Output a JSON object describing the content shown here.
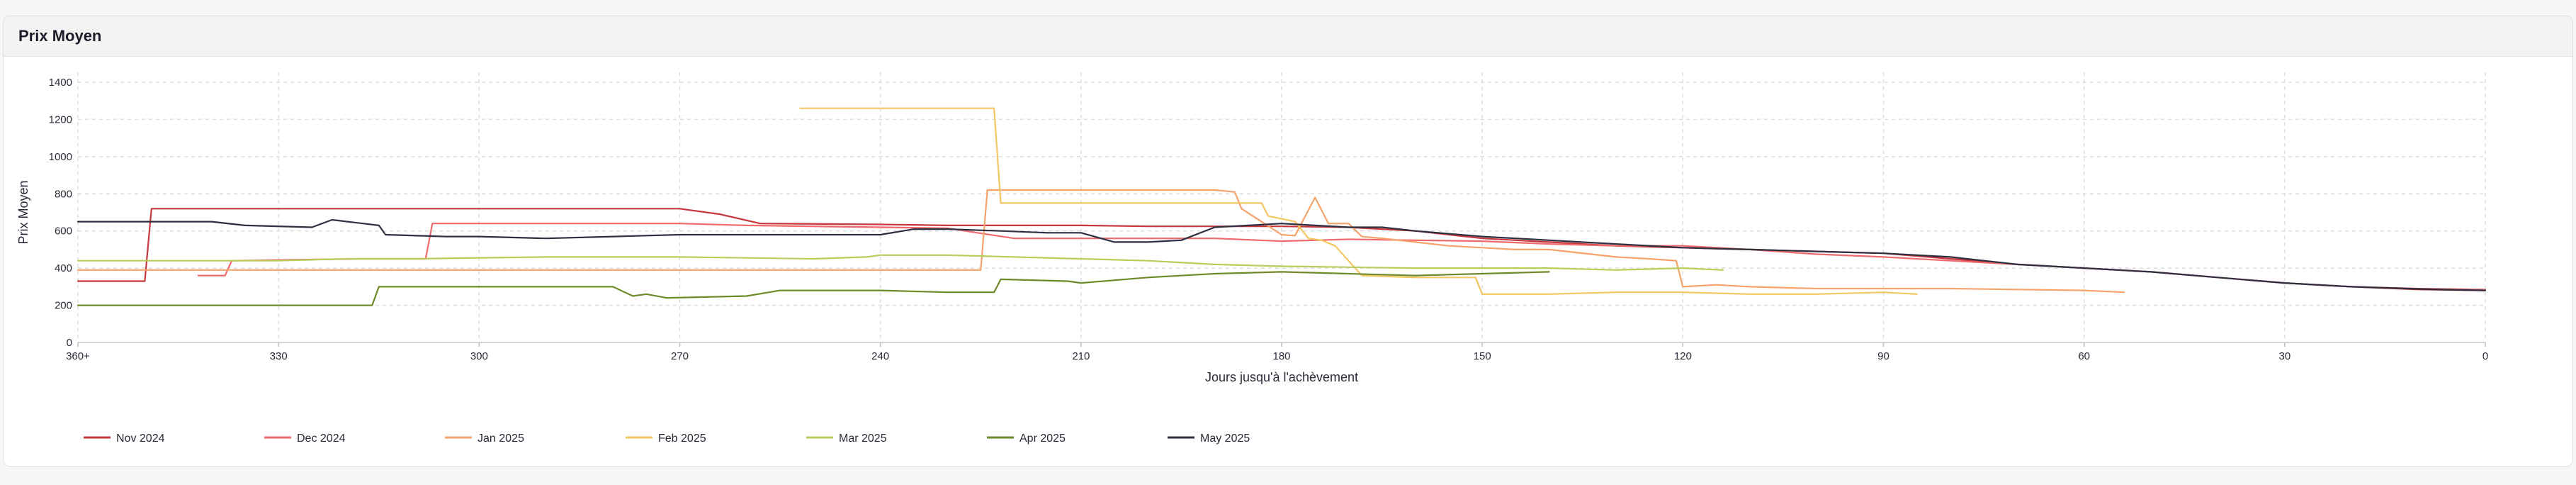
{
  "card": {
    "title": "Prix Moyen"
  },
  "chart_data": {
    "type": "line",
    "xlabel": "Jours jusqu'à l'achèvement",
    "ylabel": "Prix Moyen",
    "xlim": [
      360,
      0
    ],
    "ylim": [
      0,
      1400
    ],
    "x_ticks": [
      {
        "value": 360,
        "label": "360+"
      },
      {
        "value": 330,
        "label": "330"
      },
      {
        "value": 300,
        "label": "300"
      },
      {
        "value": 270,
        "label": "270"
      },
      {
        "value": 240,
        "label": "240"
      },
      {
        "value": 210,
        "label": "210"
      },
      {
        "value": 180,
        "label": "180"
      },
      {
        "value": 150,
        "label": "150"
      },
      {
        "value": 120,
        "label": "120"
      },
      {
        "value": 90,
        "label": "90"
      },
      {
        "value": 60,
        "label": "60"
      },
      {
        "value": 30,
        "label": "30"
      },
      {
        "value": 0,
        "label": "0"
      }
    ],
    "y_ticks": [
      0,
      200,
      400,
      600,
      800,
      1000,
      1200,
      1400
    ],
    "grid": true,
    "legend_position": "bottom-left",
    "series": [
      {
        "name": "Nov 2024",
        "color": "#c6373c",
        "points": [
          [
            360,
            330
          ],
          [
            350,
            330
          ],
          [
            349,
            720
          ],
          [
            310,
            720
          ],
          [
            270,
            720
          ],
          [
            264,
            690
          ],
          [
            258,
            640
          ],
          [
            240,
            635
          ],
          [
            230,
            630
          ],
          [
            210,
            630
          ],
          [
            200,
            625
          ],
          [
            190,
            625
          ],
          [
            180,
            625
          ],
          [
            170,
            620
          ],
          [
            160,
            600
          ],
          [
            150,
            560
          ],
          [
            140,
            540
          ],
          [
            130,
            520
          ],
          [
            120,
            510
          ],
          [
            110,
            500
          ],
          [
            100,
            490
          ],
          [
            90,
            480
          ],
          [
            80,
            450
          ],
          [
            70,
            420
          ],
          [
            60,
            400
          ],
          [
            50,
            380
          ],
          [
            40,
            350
          ],
          [
            30,
            320
          ],
          [
            20,
            300
          ],
          [
            10,
            285
          ],
          [
            0,
            280
          ]
        ]
      },
      {
        "name": "Dec 2024",
        "color": "#ef6a6d",
        "points": [
          [
            342,
            360
          ],
          [
            338,
            360
          ],
          [
            337,
            440
          ],
          [
            318,
            450
          ],
          [
            308,
            450
          ],
          [
            307,
            640
          ],
          [
            270,
            640
          ],
          [
            260,
            630
          ],
          [
            240,
            620
          ],
          [
            230,
            615
          ],
          [
            220,
            560
          ],
          [
            200,
            560
          ],
          [
            190,
            560
          ],
          [
            180,
            545
          ],
          [
            175,
            550
          ],
          [
            170,
            555
          ],
          [
            160,
            550
          ],
          [
            150,
            545
          ],
          [
            140,
            530
          ],
          [
            130,
            520
          ],
          [
            120,
            520
          ],
          [
            110,
            500
          ],
          [
            100,
            475
          ],
          [
            90,
            460
          ],
          [
            80,
            440
          ],
          [
            70,
            420
          ],
          [
            60,
            400
          ],
          [
            50,
            380
          ],
          [
            40,
            350
          ],
          [
            30,
            320
          ],
          [
            20,
            300
          ],
          [
            10,
            290
          ],
          [
            0,
            285
          ]
        ]
      },
      {
        "name": "Jan 2025",
        "color": "#f5a36a",
        "points": [
          [
            360,
            390
          ],
          [
            300,
            390
          ],
          [
            270,
            390
          ],
          [
            240,
            390
          ],
          [
            225,
            390
          ],
          [
            224,
            820
          ],
          [
            210,
            820
          ],
          [
            190,
            820
          ],
          [
            187,
            810
          ],
          [
            186,
            720
          ],
          [
            180,
            580
          ],
          [
            178,
            575
          ],
          [
            175,
            780
          ],
          [
            173,
            640
          ],
          [
            170,
            640
          ],
          [
            168,
            570
          ],
          [
            165,
            560
          ],
          [
            160,
            540
          ],
          [
            155,
            520
          ],
          [
            150,
            510
          ],
          [
            145,
            500
          ],
          [
            140,
            500
          ],
          [
            130,
            460
          ],
          [
            125,
            450
          ],
          [
            121,
            440
          ],
          [
            120,
            300
          ],
          [
            115,
            310
          ],
          [
            110,
            300
          ],
          [
            100,
            290
          ],
          [
            90,
            290
          ],
          [
            80,
            290
          ],
          [
            70,
            285
          ],
          [
            60,
            280
          ],
          [
            54,
            270
          ]
        ]
      },
      {
        "name": "Feb 2025",
        "color": "#f2c661",
        "points": [
          [
            252,
            1260
          ],
          [
            230,
            1260
          ],
          [
            223,
            1260
          ],
          [
            222,
            750
          ],
          [
            210,
            750
          ],
          [
            200,
            750
          ],
          [
            190,
            750
          ],
          [
            183,
            750
          ],
          [
            182,
            680
          ],
          [
            178,
            650
          ],
          [
            176,
            560
          ],
          [
            174,
            550
          ],
          [
            172,
            520
          ],
          [
            170,
            440
          ],
          [
            168,
            360
          ],
          [
            160,
            350
          ],
          [
            151,
            350
          ],
          [
            150,
            260
          ],
          [
            140,
            260
          ],
          [
            130,
            270
          ],
          [
            120,
            270
          ],
          [
            110,
            260
          ],
          [
            100,
            260
          ],
          [
            90,
            270
          ],
          [
            85,
            260
          ]
        ]
      },
      {
        "name": "Mar 2025",
        "color": "#b7cf5a",
        "points": [
          [
            360,
            440
          ],
          [
            330,
            440
          ],
          [
            320,
            450
          ],
          [
            310,
            450
          ],
          [
            290,
            460
          ],
          [
            270,
            460
          ],
          [
            250,
            450
          ],
          [
            242,
            460
          ],
          [
            240,
            470
          ],
          [
            230,
            470
          ],
          [
            210,
            450
          ],
          [
            200,
            440
          ],
          [
            190,
            420
          ],
          [
            180,
            410
          ],
          [
            160,
            400
          ],
          [
            150,
            400
          ],
          [
            140,
            400
          ],
          [
            130,
            390
          ],
          [
            120,
            400
          ],
          [
            114,
            390
          ]
        ]
      },
      {
        "name": "Apr 2025",
        "color": "#6f8a2b",
        "points": [
          [
            360,
            200
          ],
          [
            316,
            200
          ],
          [
            315,
            300
          ],
          [
            300,
            300
          ],
          [
            280,
            300
          ],
          [
            277,
            250
          ],
          [
            275,
            260
          ],
          [
            272,
            240
          ],
          [
            260,
            250
          ],
          [
            255,
            280
          ],
          [
            240,
            280
          ],
          [
            230,
            270
          ],
          [
            223,
            270
          ],
          [
            222,
            340
          ],
          [
            212,
            330
          ],
          [
            210,
            320
          ],
          [
            200,
            350
          ],
          [
            190,
            370
          ],
          [
            180,
            380
          ],
          [
            170,
            370
          ],
          [
            160,
            360
          ],
          [
            150,
            370
          ],
          [
            140,
            380
          ]
        ]
      },
      {
        "name": "May 2025",
        "color": "#2e2f40",
        "points": [
          [
            360,
            650
          ],
          [
            340,
            650
          ],
          [
            335,
            630
          ],
          [
            325,
            620
          ],
          [
            322,
            660
          ],
          [
            315,
            630
          ],
          [
            314,
            580
          ],
          [
            305,
            570
          ],
          [
            300,
            570
          ],
          [
            290,
            560
          ],
          [
            280,
            570
          ],
          [
            270,
            580
          ],
          [
            250,
            580
          ],
          [
            240,
            580
          ],
          [
            235,
            610
          ],
          [
            230,
            610
          ],
          [
            222,
            600
          ],
          [
            215,
            590
          ],
          [
            210,
            590
          ],
          [
            205,
            540
          ],
          [
            200,
            540
          ],
          [
            195,
            550
          ],
          [
            190,
            620
          ],
          [
            185,
            630
          ],
          [
            180,
            640
          ],
          [
            175,
            630
          ],
          [
            170,
            620
          ],
          [
            165,
            620
          ],
          [
            160,
            600
          ],
          [
            150,
            570
          ],
          [
            140,
            550
          ],
          [
            130,
            530
          ],
          [
            120,
            510
          ],
          [
            110,
            500
          ],
          [
            100,
            490
          ],
          [
            90,
            480
          ],
          [
            80,
            460
          ],
          [
            70,
            420
          ],
          [
            60,
            400
          ],
          [
            50,
            380
          ],
          [
            40,
            350
          ],
          [
            30,
            320
          ],
          [
            20,
            300
          ],
          [
            10,
            288
          ],
          [
            0,
            280
          ]
        ]
      }
    ]
  }
}
